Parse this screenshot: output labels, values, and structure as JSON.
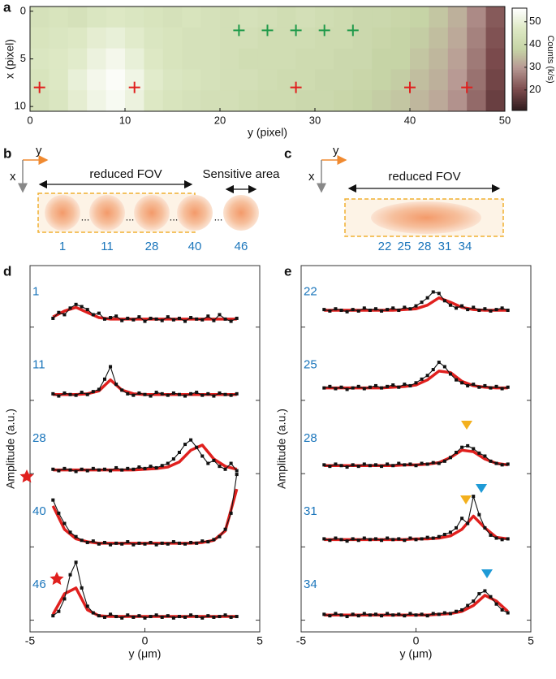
{
  "panel_labels": [
    "a",
    "b",
    "c",
    "d",
    "e"
  ],
  "chart_data": [
    {
      "type": "heatmap",
      "xlabel": "y (pixel)",
      "ylabel": "x (pixel)",
      "xlim": [
        0,
        50
      ],
      "xticks": [
        0,
        10,
        20,
        30,
        40,
        50
      ],
      "ylim": [
        -0.5,
        10.5
      ],
      "yticks": [
        0,
        5,
        10
      ],
      "y_inverted": true,
      "rows": [
        [
          44,
          45,
          44,
          46,
          47,
          46,
          45,
          44,
          45,
          44,
          43,
          44,
          43,
          42,
          43,
          42,
          41,
          40,
          40,
          39,
          38,
          36,
          33,
          28,
          22
        ],
        [
          45,
          46,
          47,
          49,
          50,
          48,
          46,
          45,
          44,
          44,
          43,
          43,
          42,
          42,
          42,
          41,
          41,
          40,
          39,
          38,
          37,
          35,
          32,
          27,
          21
        ],
        [
          46,
          47,
          48,
          51,
          53,
          50,
          47,
          45,
          44,
          44,
          43,
          42,
          42,
          42,
          41,
          41,
          40,
          40,
          38,
          38,
          36,
          34,
          31,
          26,
          20
        ],
        [
          45,
          47,
          50,
          53,
          55,
          52,
          48,
          46,
          45,
          44,
          43,
          43,
          42,
          41,
          41,
          40,
          40,
          39,
          38,
          37,
          35,
          33,
          30,
          25,
          19
        ],
        [
          44,
          46,
          49,
          52,
          54,
          51,
          47,
          45,
          44,
          43,
          43,
          42,
          41,
          41,
          40,
          40,
          39,
          38,
          37,
          36,
          34,
          32,
          29,
          24,
          18
        ]
      ],
      "colormap": [
        [
          11,
          "#2e1a1c"
        ],
        [
          20,
          "#7a4a4c"
        ],
        [
          30,
          "#b89a94"
        ],
        [
          38,
          "#c6d4a6"
        ],
        [
          47,
          "#dde8c4"
        ],
        [
          56,
          "#ffffff"
        ]
      ],
      "clim": [
        11,
        56
      ],
      "cticks": [
        20,
        30,
        40,
        50
      ],
      "clabel": "Counts (k/s)",
      "markers": [
        {
          "color": "#1f9a4a",
          "y": [
            22,
            25,
            28,
            31,
            34
          ],
          "x": [
            2,
            2,
            2,
            2,
            2
          ]
        },
        {
          "color": "#e0201e",
          "y": [
            1,
            11,
            28,
            40,
            46
          ],
          "x": [
            8,
            8,
            8,
            8,
            8
          ]
        }
      ]
    },
    {
      "type": "line",
      "xlabel": "y (μm)",
      "ylabel": "Amplitude (a.u.)",
      "xlim": [
        -5,
        5
      ],
      "xticks": [
        -5,
        0,
        5
      ],
      "ylim": [
        0,
        1
      ],
      "color": "#111111",
      "fit_color": "#e0201e",
      "x": [
        -4,
        -3.75,
        -3.5,
        -3.25,
        -3,
        -2.75,
        -2.5,
        -2.25,
        -2,
        -1.75,
        -1.5,
        -1.25,
        -1,
        -0.75,
        -0.5,
        -0.25,
        0,
        0.25,
        0.5,
        0.75,
        1,
        1.25,
        1.5,
        1.75,
        2,
        2.25,
        2.5,
        2.75,
        3,
        3.25,
        3.5,
        3.75,
        4
      ],
      "fit_x": [
        -4,
        -3.5,
        -3,
        -2.5,
        -2,
        -1.5,
        -1,
        -0.5,
        0,
        0.5,
        1,
        1.5,
        2,
        2.5,
        3,
        3.5,
        4
      ],
      "series": [
        {
          "name": "1",
          "values": [
            0.28,
            0.36,
            0.33,
            0.42,
            0.47,
            0.44,
            0.4,
            0.33,
            0.35,
            0.27,
            0.29,
            0.31,
            0.25,
            0.28,
            0.26,
            0.3,
            0.24,
            0.28,
            0.27,
            0.25,
            0.3,
            0.26,
            0.28,
            0.24,
            0.29,
            0.27,
            0.26,
            0.31,
            0.25,
            0.33,
            0.27,
            0.24,
            0.28
          ],
          "fit": [
            0.3,
            0.38,
            0.43,
            0.36,
            0.29,
            0.27,
            0.27,
            0.27,
            0.27,
            0.27,
            0.27,
            0.27,
            0.27,
            0.27,
            0.27,
            0.27,
            0.27
          ]
        },
        {
          "name": "11",
          "values": [
            0.25,
            0.22,
            0.26,
            0.24,
            0.23,
            0.27,
            0.24,
            0.28,
            0.31,
            0.45,
            0.62,
            0.38,
            0.3,
            0.25,
            0.23,
            0.26,
            0.24,
            0.22,
            0.27,
            0.25,
            0.23,
            0.26,
            0.24,
            0.22,
            0.25,
            0.27,
            0.23,
            0.25,
            0.22,
            0.26,
            0.24,
            0.23,
            0.25
          ],
          "fit": [
            0.24,
            0.24,
            0.24,
            0.25,
            0.29,
            0.44,
            0.3,
            0.25,
            0.24,
            0.24,
            0.24,
            0.24,
            0.24,
            0.24,
            0.24,
            0.24,
            0.24
          ]
        },
        {
          "name": "28",
          "values": [
            0.22,
            0.2,
            0.23,
            0.21,
            0.19,
            0.22,
            0.2,
            0.23,
            0.21,
            0.22,
            0.2,
            0.24,
            0.21,
            0.23,
            0.22,
            0.25,
            0.23,
            0.26,
            0.24,
            0.27,
            0.3,
            0.36,
            0.45,
            0.56,
            0.62,
            0.52,
            0.4,
            0.3,
            0.34,
            0.26,
            0.22,
            0.3,
            0.2
          ],
          "fit": [
            0.21,
            0.21,
            0.21,
            0.21,
            0.21,
            0.21,
            0.21,
            0.21,
            0.22,
            0.23,
            0.25,
            0.32,
            0.48,
            0.55,
            0.36,
            0.26,
            0.22
          ]
        },
        {
          "name": "40",
          "values": [
            0.8,
            0.62,
            0.48,
            0.36,
            0.3,
            0.25,
            0.22,
            0.24,
            0.2,
            0.22,
            0.19,
            0.21,
            0.2,
            0.23,
            0.19,
            0.21,
            0.2,
            0.22,
            0.19,
            0.21,
            0.2,
            0.23,
            0.21,
            0.2,
            0.22,
            0.21,
            0.24,
            0.23,
            0.26,
            0.3,
            0.4,
            0.62,
            1.15
          ],
          "fit": [
            0.72,
            0.4,
            0.27,
            0.23,
            0.21,
            0.21,
            0.21,
            0.21,
            0.21,
            0.21,
            0.21,
            0.21,
            0.21,
            0.22,
            0.25,
            0.38,
            0.95
          ]
        },
        {
          "name": "46",
          "values": [
            0.22,
            0.28,
            0.45,
            0.78,
            0.95,
            0.6,
            0.35,
            0.26,
            0.22,
            0.2,
            0.24,
            0.21,
            0.19,
            0.23,
            0.2,
            0.22,
            0.19,
            0.21,
            0.23,
            0.2,
            0.22,
            0.19,
            0.21,
            0.2,
            0.23,
            0.21,
            0.19,
            0.22,
            0.2,
            0.21,
            0.23,
            0.2,
            0.21
          ],
          "fit": [
            0.24,
            0.52,
            0.6,
            0.3,
            0.22,
            0.21,
            0.21,
            0.21,
            0.21,
            0.21,
            0.21,
            0.21,
            0.21,
            0.21,
            0.21,
            0.21,
            0.21
          ]
        }
      ]
    },
    {
      "type": "line",
      "xlabel": "y (μm)",
      "ylabel": "Amplitude (a.u.)",
      "xlim": [
        -5,
        5
      ],
      "xticks": [
        -5,
        0,
        5
      ],
      "ylim": [
        0,
        1
      ],
      "color": "#111111",
      "fit_color": "#e0201e",
      "x": [
        -4,
        -3.75,
        -3.5,
        -3.25,
        -3,
        -2.75,
        -2.5,
        -2.25,
        -2,
        -1.75,
        -1.5,
        -1.25,
        -1,
        -0.75,
        -0.5,
        -0.25,
        0,
        0.25,
        0.5,
        0.75,
        1,
        1.25,
        1.5,
        1.75,
        2,
        2.25,
        2.5,
        2.75,
        3,
        3.25,
        3.5,
        3.75,
        4
      ],
      "fit_x": [
        -4,
        -3.5,
        -3,
        -2.5,
        -2,
        -1.5,
        -1,
        -0.5,
        0,
        0.5,
        1,
        1.5,
        2,
        2.5,
        3,
        3.5,
        4
      ],
      "series": [
        {
          "name": "22",
          "values": [
            0.4,
            0.38,
            0.41,
            0.39,
            0.37,
            0.4,
            0.38,
            0.42,
            0.39,
            0.41,
            0.38,
            0.4,
            0.42,
            0.39,
            0.43,
            0.41,
            0.45,
            0.5,
            0.56,
            0.64,
            0.62,
            0.52,
            0.46,
            0.42,
            0.45,
            0.4,
            0.43,
            0.39,
            0.41,
            0.38,
            0.4,
            0.42,
            0.39
          ],
          "fit": [
            0.39,
            0.39,
            0.39,
            0.39,
            0.39,
            0.39,
            0.39,
            0.4,
            0.41,
            0.46,
            0.56,
            0.5,
            0.43,
            0.4,
            0.39,
            0.39,
            0.39
          ]
        },
        {
          "name": "25",
          "values": [
            0.33,
            0.35,
            0.32,
            0.34,
            0.31,
            0.33,
            0.35,
            0.32,
            0.34,
            0.36,
            0.33,
            0.35,
            0.37,
            0.34,
            0.38,
            0.36,
            0.4,
            0.45,
            0.5,
            0.58,
            0.68,
            0.62,
            0.52,
            0.44,
            0.4,
            0.36,
            0.38,
            0.34,
            0.36,
            0.33,
            0.35,
            0.32,
            0.34
          ],
          "fit": [
            0.33,
            0.33,
            0.33,
            0.33,
            0.33,
            0.33,
            0.34,
            0.35,
            0.37,
            0.44,
            0.56,
            0.54,
            0.42,
            0.36,
            0.34,
            0.33,
            0.33
          ]
        },
        {
          "name": "28",
          "values": [
            0.28,
            0.26,
            0.29,
            0.27,
            0.25,
            0.28,
            0.26,
            0.29,
            0.27,
            0.28,
            0.26,
            0.29,
            0.27,
            0.3,
            0.28,
            0.29,
            0.27,
            0.3,
            0.29,
            0.31,
            0.3,
            0.33,
            0.38,
            0.45,
            0.52,
            0.54,
            0.5,
            0.44,
            0.4,
            0.33,
            0.3,
            0.28,
            0.29
          ],
          "fit": [
            0.27,
            0.27,
            0.27,
            0.27,
            0.27,
            0.27,
            0.27,
            0.28,
            0.28,
            0.29,
            0.31,
            0.38,
            0.48,
            0.46,
            0.36,
            0.3,
            0.28
          ]
        },
        {
          "name": "31",
          "values": [
            0.27,
            0.25,
            0.28,
            0.26,
            0.24,
            0.27,
            0.25,
            0.28,
            0.26,
            0.27,
            0.25,
            0.28,
            0.26,
            0.27,
            0.25,
            0.28,
            0.26,
            0.27,
            0.29,
            0.28,
            0.3,
            0.33,
            0.36,
            0.42,
            0.55,
            0.48,
            0.85,
            0.6,
            0.42,
            0.32,
            0.28,
            0.26,
            0.27
          ],
          "fit": [
            0.26,
            0.26,
            0.26,
            0.26,
            0.26,
            0.26,
            0.26,
            0.26,
            0.27,
            0.27,
            0.28,
            0.31,
            0.4,
            0.58,
            0.42,
            0.29,
            0.27
          ]
        },
        {
          "name": "34",
          "values": [
            0.24,
            0.22,
            0.25,
            0.23,
            0.21,
            0.24,
            0.22,
            0.25,
            0.23,
            0.24,
            0.22,
            0.25,
            0.23,
            0.24,
            0.22,
            0.25,
            0.23,
            0.24,
            0.22,
            0.25,
            0.24,
            0.26,
            0.25,
            0.28,
            0.3,
            0.36,
            0.42,
            0.52,
            0.56,
            0.48,
            0.38,
            0.3,
            0.26
          ],
          "fit": [
            0.23,
            0.23,
            0.23,
            0.23,
            0.23,
            0.23,
            0.23,
            0.23,
            0.23,
            0.23,
            0.24,
            0.25,
            0.28,
            0.36,
            0.5,
            0.42,
            0.28
          ]
        }
      ]
    }
  ],
  "diagrams": {
    "b": {
      "y_axis": "y",
      "x_axis": "x",
      "fov": "reduced FOV",
      "sensitive": "Sensitive area",
      "dots": "...",
      "sites": [
        "1",
        "11",
        "28",
        "40",
        "46"
      ]
    },
    "c": {
      "y_axis": "y",
      "x_axis": "x",
      "fov": "reduced FOV",
      "sites": [
        "22",
        "25",
        "28",
        "31",
        "34"
      ]
    }
  }
}
